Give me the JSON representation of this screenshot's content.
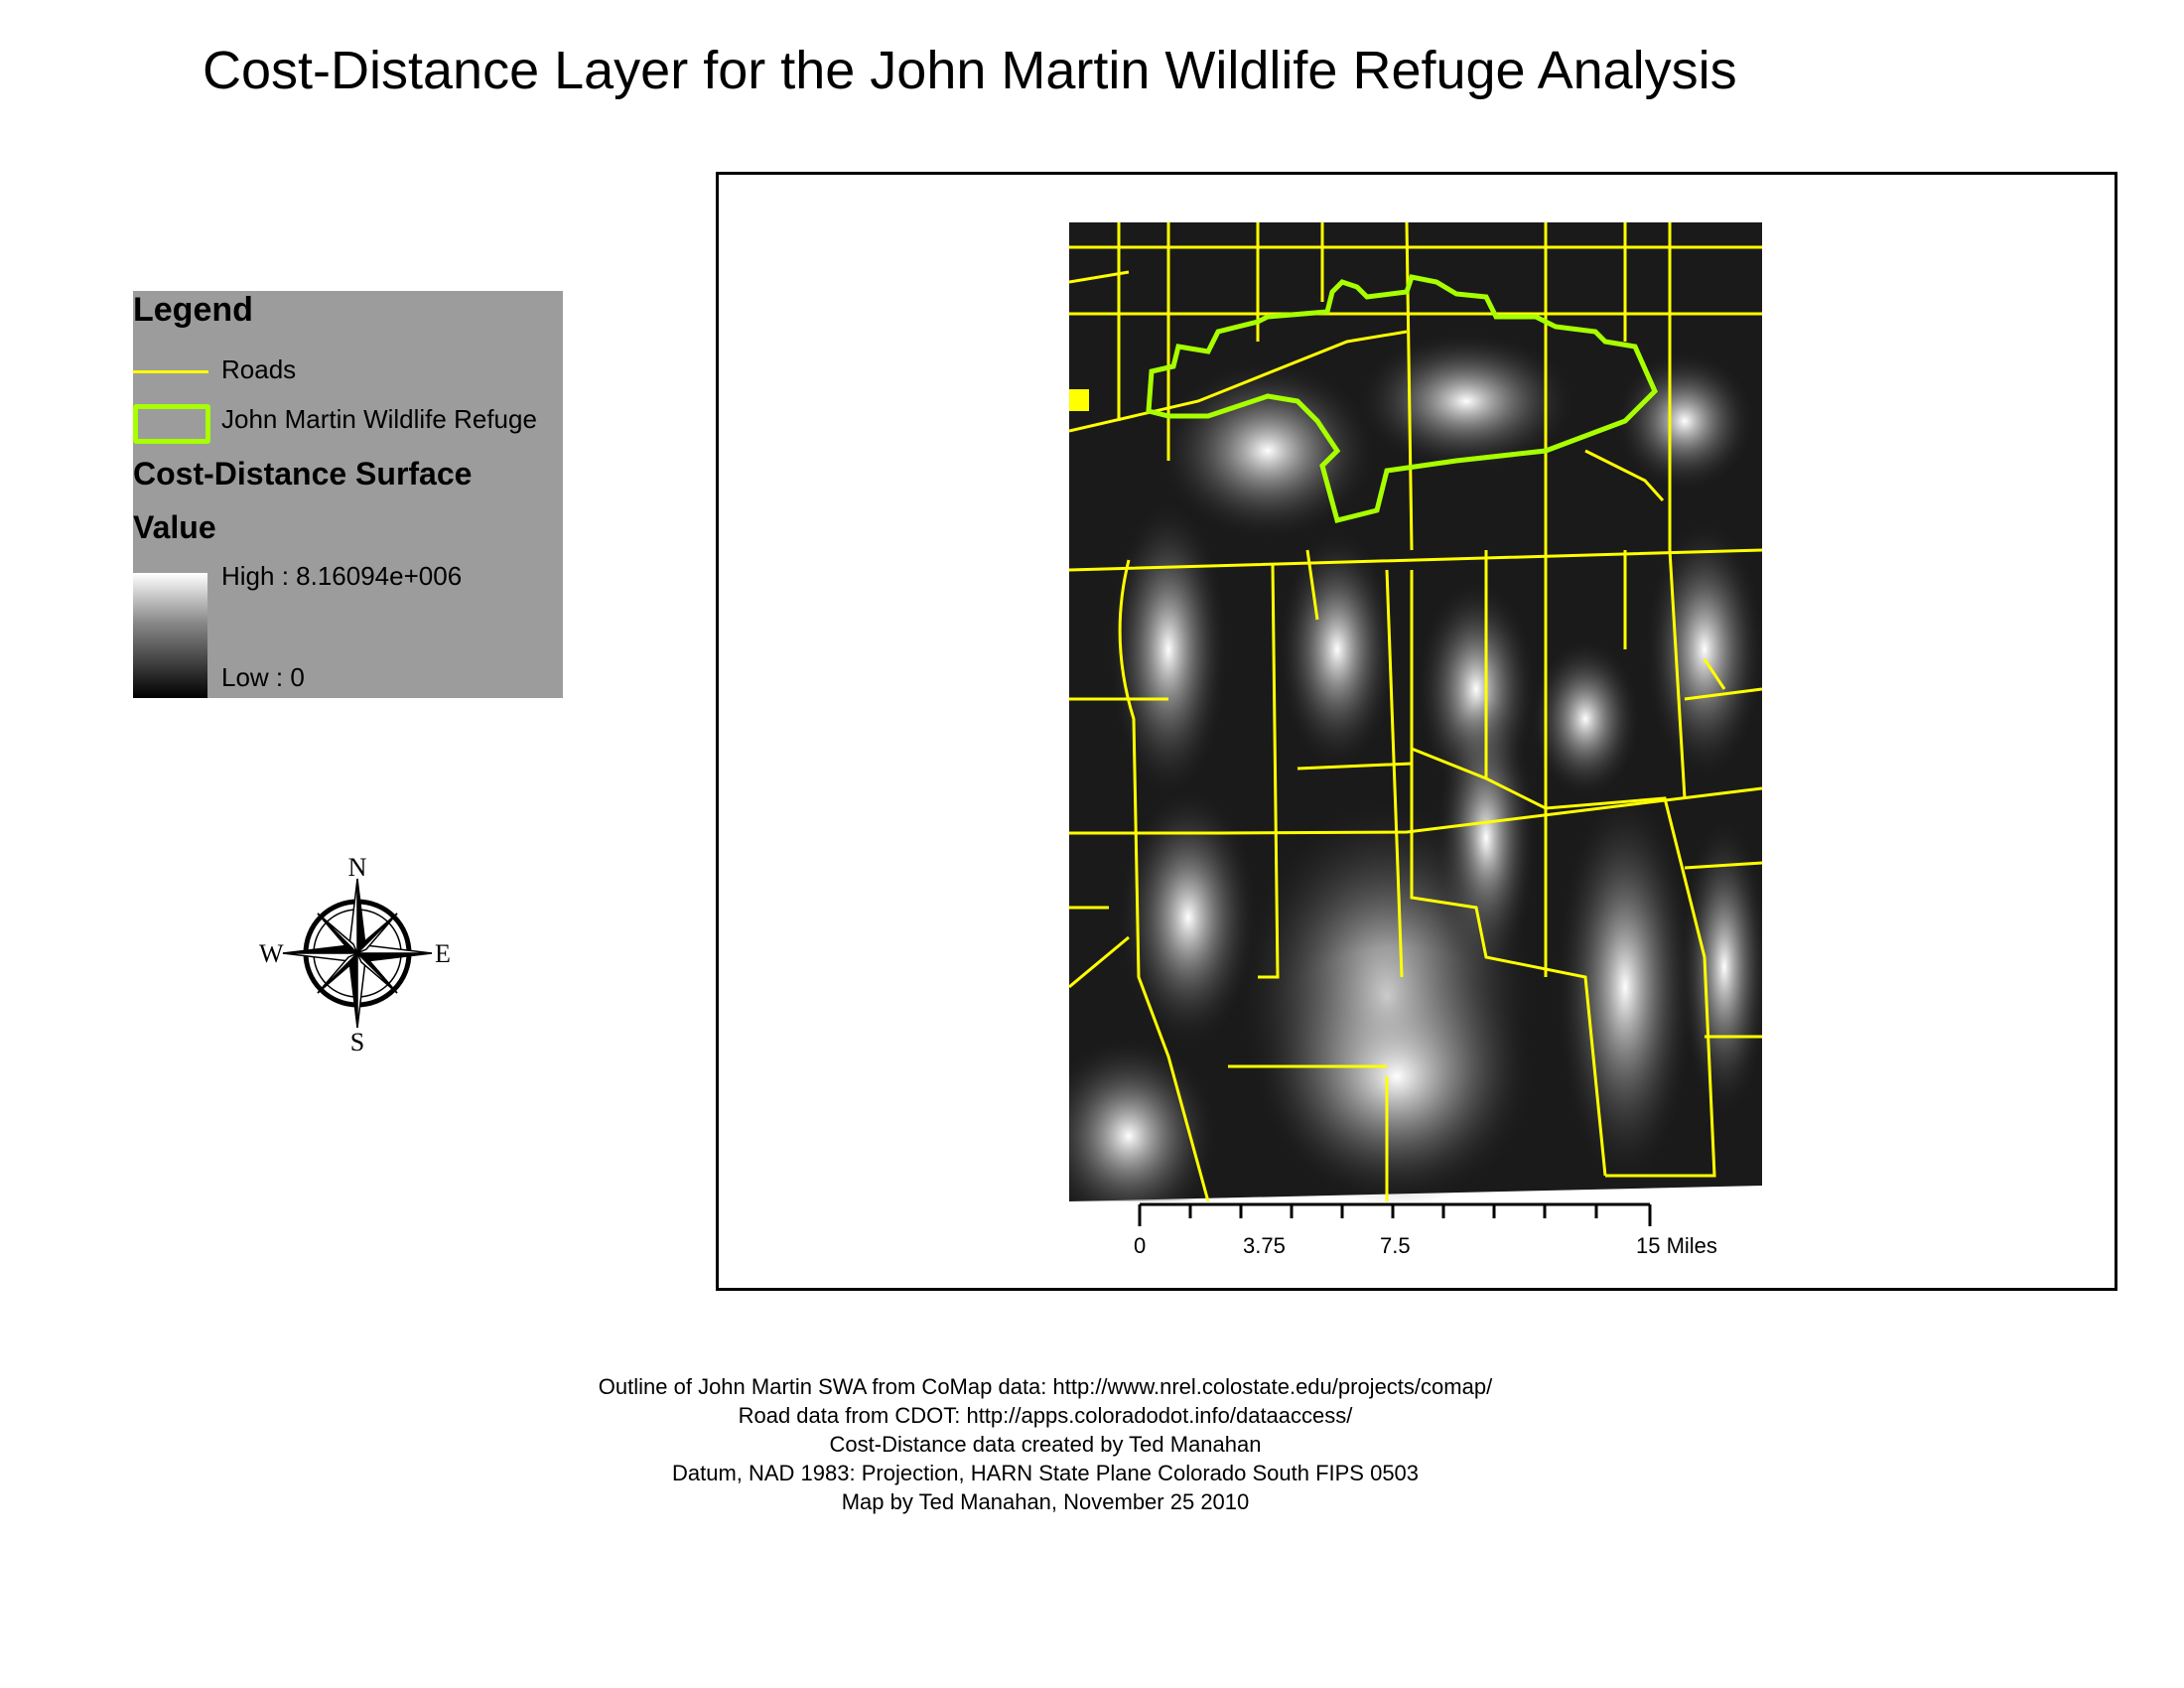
{
  "title": "Cost-Distance Layer for the John Martin Wildlife Refuge Analysis",
  "legend": {
    "heading": "Legend",
    "items": [
      {
        "label": "Roads",
        "symbol": "line",
        "color": "#ffff00"
      },
      {
        "label": "John Martin Wildlife Refuge",
        "symbol": "outline",
        "color": "#a8ff00"
      }
    ],
    "surface_heading": "Cost-Distance Surface",
    "value_heading": "Value",
    "high_label": "High : 8.16094e+006",
    "low_label": "Low : 0",
    "ramp": [
      "#ffffff",
      "#000000"
    ]
  },
  "compass": {
    "n": "N",
    "s": "S",
    "e": "E",
    "w": "W"
  },
  "scalebar": {
    "labels": [
      "0",
      "3.75",
      "7.5",
      "15 Miles"
    ]
  },
  "colors": {
    "roads": "#ffff00",
    "refuge": "#a8ff00",
    "legend_bg": "#9c9c9c"
  },
  "footer": [
    "Outline of John Martin SWA from CoMap data: http://www.nrel.colostate.edu/projects/comap/",
    "Road data from CDOT: http://apps.coloradodot.info/dataaccess/",
    "Cost-Distance data created by Ted Manahan",
    "Datum, NAD 1983: Projection, HARN State Plane Colorado South FIPS 0503",
    "Map by Ted Manahan, November 25 2010"
  ]
}
